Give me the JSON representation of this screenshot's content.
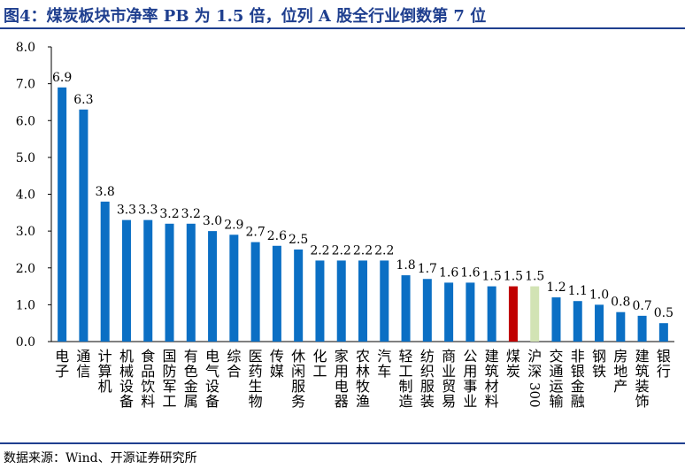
{
  "title": "图4：煤炭板块市净率 PB 为 1.5 倍，位列 A 股全行业倒数第 7 位",
  "source": "数据来源：Wind、开源证券研究所",
  "colors": {
    "default_bar": "#0b6fc4",
    "highlight_bar": "#c00000",
    "benchmark_bar": "#d2e3b4",
    "title": "#1f3f8f"
  },
  "chart_data": {
    "type": "bar",
    "ylim": [
      0,
      8
    ],
    "yticks": [
      "0.0",
      "1.0",
      "2.0",
      "3.0",
      "4.0",
      "5.0",
      "6.0",
      "7.0",
      "8.0"
    ],
    "grid": false,
    "categories": [
      "电子",
      "通信",
      "计算机",
      "机械设备",
      "食品饮料",
      "国防军工",
      "有色金属",
      "电气设备",
      "综合",
      "医药生物",
      "传媒",
      "休闲服务",
      "化工",
      "家用电器",
      "农林牧渔",
      "汽车",
      "轻工制造",
      "纺织服装",
      "商业贸易",
      "公用事业",
      "建筑材料",
      "煤炭",
      "沪深300",
      "交通运输",
      "非银金融",
      "钢铁",
      "房地产",
      "建筑装饰",
      "银行"
    ],
    "values": [
      6.9,
      6.3,
      3.8,
      3.3,
      3.3,
      3.2,
      3.2,
      3.0,
      2.9,
      2.7,
      2.6,
      2.5,
      2.2,
      2.2,
      2.2,
      2.2,
      1.8,
      1.7,
      1.6,
      1.6,
      1.5,
      1.5,
      1.5,
      1.2,
      1.1,
      1.0,
      0.8,
      0.7,
      0.5
    ],
    "data_labels": [
      "6.9",
      "6.3",
      "3.8",
      "3.3",
      "3.3",
      "3.2",
      "3.2",
      "3.0",
      "2.9",
      "2.7",
      "2.6",
      "2.5",
      "2.2",
      "2.2",
      "2.2",
      "2.2",
      "1.8",
      "1.7",
      "1.6",
      "1.6",
      "1.5",
      "1.5",
      "1.5",
      "1.2",
      "1.1",
      "1.0",
      "0.8",
      "0.7",
      "0.5"
    ],
    "highlight": "煤炭",
    "benchmark": "沪深300"
  }
}
